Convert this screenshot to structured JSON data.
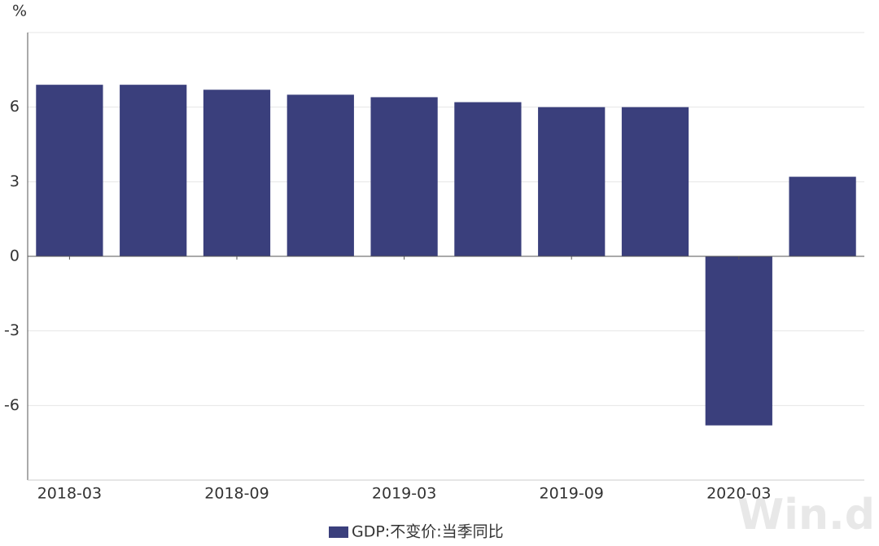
{
  "chart_data": {
    "type": "bar",
    "y_label": "%",
    "categories": [
      "2018-03",
      null,
      "2018-09",
      null,
      "2019-03",
      null,
      "2019-09",
      null,
      "2020-03",
      null
    ],
    "series": [
      {
        "name": "GDP:不变价:当季同比",
        "color": "#3a3f7c",
        "values": [
          6.9,
          6.9,
          6.7,
          6.5,
          6.4,
          6.2,
          6.0,
          6.0,
          -6.8,
          3.2
        ]
      }
    ],
    "ylim": [
      -9,
      9
    ],
    "yticks": [
      -6,
      -3,
      0,
      3,
      6
    ],
    "grid": true,
    "legend": "bottom",
    "watermark": "Win.d"
  }
}
